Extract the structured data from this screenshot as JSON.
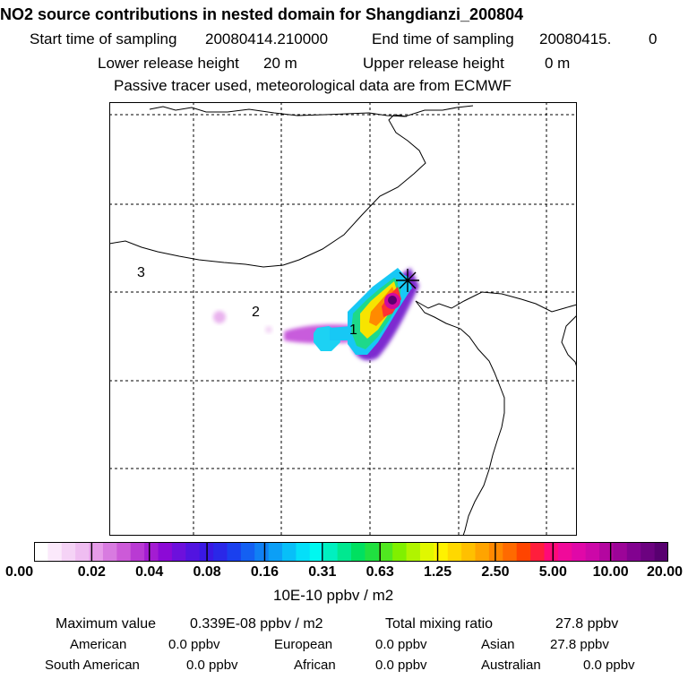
{
  "header": {
    "title": "NO2 source contributions in nested domain for Shangdianzi_200804",
    "start_label": "Start time of sampling",
    "start_value": "20080414.210000",
    "end_label": "End time of sampling",
    "end_value": "20080415.",
    "end_value2": "0",
    "lower_label": "Lower release height",
    "lower_value": "20 m",
    "upper_label": "Upper release height",
    "upper_value": "0 m",
    "tracer_note": "Passive tracer used, meteorological data are from ECMWF"
  },
  "map": {
    "region_labels": [
      "1",
      "2",
      "3"
    ],
    "receptor_marker": "star-cross-icon"
  },
  "colorbar": {
    "unit": "10E-10 ppbv / m2",
    "tick_labels": [
      "0.00",
      "0.02",
      "0.04",
      "0.08",
      "0.16",
      "0.31",
      "0.63",
      "1.25",
      "2.50",
      "5.00",
      "10.00",
      "20.00"
    ],
    "colors": [
      "#ffffff",
      "#fbe9fb",
      "#f5d3f6",
      "#efbdf1",
      "#e69ce9",
      "#d87be0",
      "#cc5ad8",
      "#b93ad3",
      "#a41cd2",
      "#8c0ad6",
      "#6d10dc",
      "#5214e0",
      "#3a18e4",
      "#2a28e8",
      "#1a40ee",
      "#1460f2",
      "#1080f4",
      "#0c9ff6",
      "#08bff8",
      "#04dff9",
      "#00f8f0",
      "#00f0c0",
      "#00e890",
      "#00e060",
      "#20e040",
      "#50e820",
      "#80f000",
      "#b0f400",
      "#e0f800",
      "#fff200",
      "#ffd800",
      "#ffc000",
      "#ffa400",
      "#ff8800",
      "#ff6a00",
      "#ff4400",
      "#ff1e3c",
      "#ff0a78",
      "#f00a9a",
      "#e008a8",
      "#cc08a8",
      "#b406a0",
      "#9c0498",
      "#820290",
      "#6c0280",
      "#580070"
    ]
  },
  "stats": {
    "max_label": "Maximum value",
    "max_value": "0.339E-08 ppbv / m2",
    "total_label": "Total mixing ratio",
    "total_value": "27.8 ppbv",
    "american_label": "American",
    "american_value": "0.0 ppbv",
    "european_label": "European",
    "european_value": "0.0 ppbv",
    "asian_label": "Asian",
    "asian_value": "27.8 ppbv",
    "south_american_label": "South American",
    "south_american_value": "0.0 ppbv",
    "african_label": "African",
    "african_value": "0.0 ppbv",
    "australian_label": "Australian",
    "australian_value": "0.0 ppbv"
  }
}
